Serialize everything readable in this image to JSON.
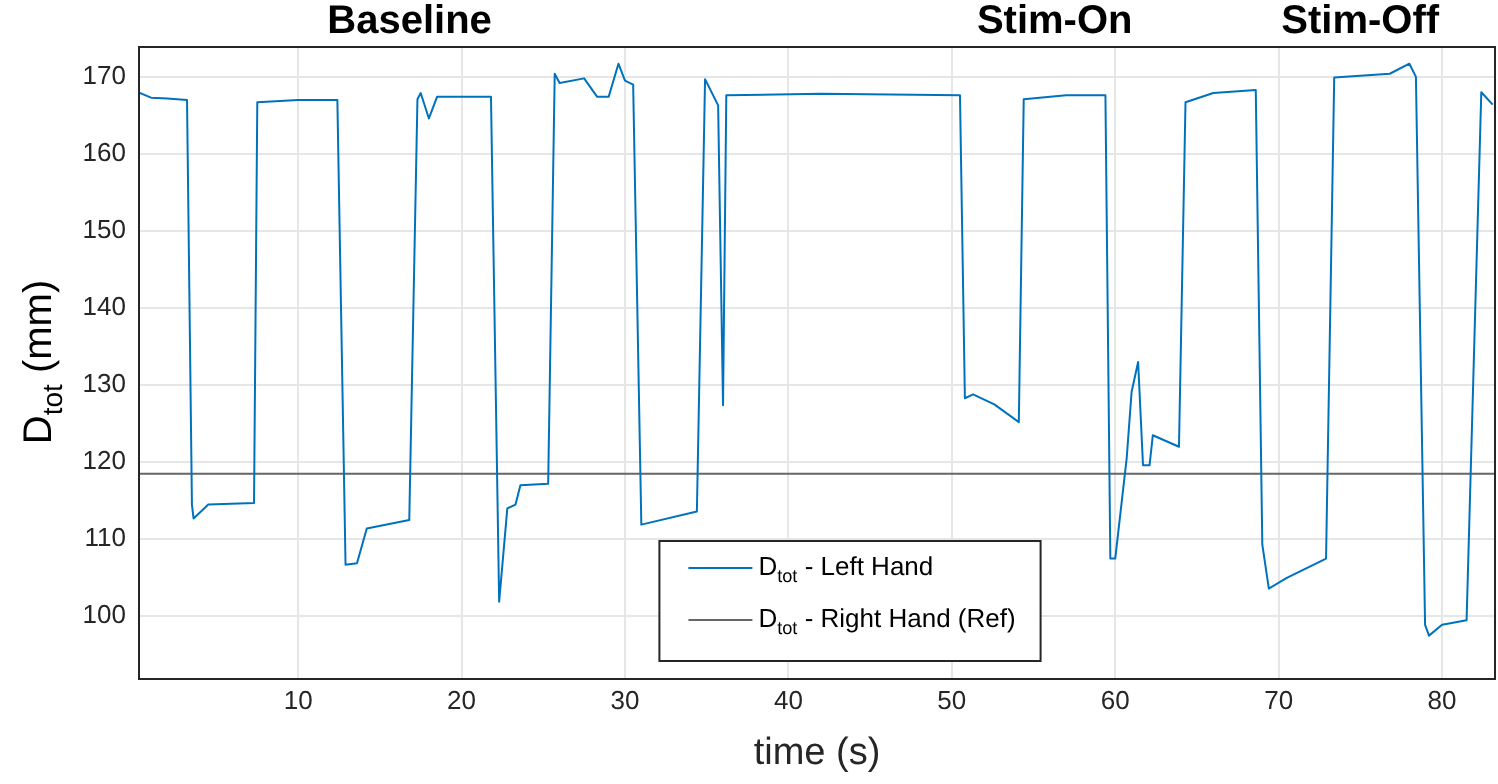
{
  "chart_data": {
    "type": "line",
    "xlabel": "time (s)",
    "ylabel": "D$_{tot}$ (mm)",
    "xlim": [
      0.2,
      83.3
    ],
    "ylim": [
      92,
      174
    ],
    "xticks": [
      10,
      20,
      30,
      40,
      50,
      60,
      70,
      80
    ],
    "yticks": [
      100,
      110,
      120,
      130,
      140,
      150,
      160,
      170
    ],
    "grid": true,
    "legend": "bottom",
    "marker": "none",
    "line_style": "solid",
    "annotations": [
      "Baseline",
      "Stim-On",
      "Stim-Off"
    ],
    "series": [
      {
        "name": "D$_{tot}$ - Left Hand",
        "color": "#0072bd",
        "x": [
          0.2,
          1.0,
          2.0,
          3.2,
          3.5,
          3.6,
          4.5,
          7.3,
          7.5,
          10.0,
          12.4,
          12.9,
          13.6,
          14.2,
          16.8,
          17.3,
          17.5,
          18.0,
          18.5,
          21.8,
          22.3,
          22.8,
          23.3,
          23.6,
          25.3,
          25.7,
          26.0,
          27.5,
          28.3,
          29.0,
          29.6,
          30.0,
          30.5,
          31.0,
          34.4,
          34.9,
          35.7,
          36.0,
          36.2,
          42.0,
          50.5,
          50.8,
          51.3,
          52.6,
          54.1,
          54.4,
          57.0,
          59.4,
          59.7,
          60.0,
          60.7,
          61.0,
          61.4,
          61.7,
          62.1,
          62.3,
          63.9,
          64.3,
          66.0,
          68.6,
          69.0,
          69.4,
          70.5,
          72.9,
          73.4,
          76.8,
          78.0,
          78.4,
          78.96,
          79.2,
          80.0,
          81.5,
          82.4,
          83.1
        ],
        "values": [
          168.0,
          167.3,
          167.2,
          167.0,
          114.5,
          112.7,
          114.5,
          114.7,
          166.7,
          167.0,
          167.0,
          106.7,
          106.9,
          111.4,
          112.5,
          167.1,
          167.9,
          164.6,
          167.4,
          167.4,
          101.9,
          114.0,
          114.5,
          117.0,
          117.2,
          170.4,
          169.2,
          169.8,
          167.4,
          167.4,
          171.7,
          169.5,
          169.0,
          111.9,
          113.6,
          169.7,
          166.3,
          127.4,
          167.6,
          167.8,
          167.6,
          128.3,
          128.8,
          127.5,
          125.2,
          167.1,
          167.6,
          167.6,
          107.5,
          107.5,
          120.5,
          129.1,
          133.0,
          119.6,
          119.6,
          123.5,
          122.0,
          166.7,
          167.9,
          168.3,
          109.3,
          103.6,
          105.0,
          107.5,
          169.9,
          170.4,
          171.7,
          170.0,
          98.9,
          97.5,
          98.9,
          99.5,
          168.0,
          166.4
        ]
      },
      {
        "name": "D$_{tot}$ - Right Hand (Ref)",
        "color": "#666666",
        "x": [
          0.2,
          83.3
        ],
        "values": [
          118.5,
          118.5
        ]
      }
    ]
  }
}
